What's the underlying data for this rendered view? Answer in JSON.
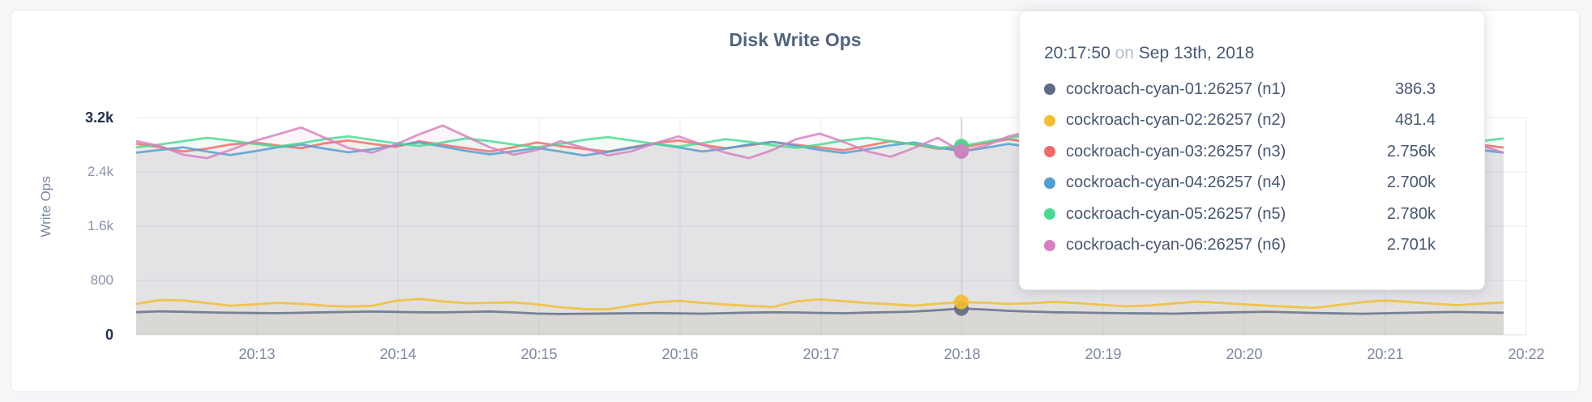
{
  "panel": {
    "title": "Disk Write Ops"
  },
  "colors": {
    "n1": "#5F6C87",
    "n2": "#F2BE2C",
    "n3": "#F16969",
    "n4": "#4E9FD1",
    "n5": "#49D990",
    "n6": "#D77FBF",
    "grid": "#e9eaee",
    "baseline": "#dbdee2",
    "hover_line": "#d2d3d6",
    "title_text": "#51637f",
    "tooltip_text": "#475872"
  },
  "tooltip": {
    "time": "20:17:50",
    "on_word": "on",
    "date": "Sep 13th, 2018",
    "rows": [
      {
        "name": "cockroach-cyan-01:26257 (n1)",
        "value": "386.3",
        "color": "#5F6C87"
      },
      {
        "name": "cockroach-cyan-02:26257 (n2)",
        "value": "481.4",
        "color": "#F2BE2C"
      },
      {
        "name": "cockroach-cyan-03:26257 (n3)",
        "value": "2.756k",
        "color": "#F16969"
      },
      {
        "name": "cockroach-cyan-04:26257 (n4)",
        "value": "2.700k",
        "color": "#4E9FD1"
      },
      {
        "name": "cockroach-cyan-05:26257 (n5)",
        "value": "2.780k",
        "color": "#49D990"
      },
      {
        "name": "cockroach-cyan-06:26257 (n6)",
        "value": "2.701k",
        "color": "#D77FBF"
      }
    ]
  },
  "chart_data": {
    "type": "line",
    "title": "Disk Write Ops",
    "xlabel": "",
    "ylabel": "Write Ops",
    "ylim": [
      0,
      3200
    ],
    "grid": true,
    "legend_position": "tooltip-overlay",
    "y_ticks": [
      {
        "label": "0",
        "value": 0,
        "emph": true
      },
      {
        "label": "800",
        "value": 800,
        "emph": false
      },
      {
        "label": "1.6k",
        "value": 1600,
        "emph": false
      },
      {
        "label": "2.4k",
        "value": 2400,
        "emph": false
      },
      {
        "label": "3.2k",
        "value": 3200,
        "emph": true
      }
    ],
    "x_ticks": [
      "20:13",
      "20:14",
      "20:15",
      "20:16",
      "20:17",
      "20:18",
      "20:19",
      "20:20",
      "20:21",
      "20:22"
    ],
    "x_interval_seconds": 10,
    "hover_index": 35,
    "hover_time": "20:17:50",
    "hover_date": "Sep 13th, 2018",
    "series": [
      {
        "name": "cockroach-cyan-01:26257 (n1)",
        "color": "#5F6C87",
        "hover_value": 386.3,
        "values": [
          332,
          345,
          338,
          330,
          324,
          320,
          318,
          324,
          331,
          336,
          341,
          337,
          331,
          329,
          336,
          343,
          330,
          312,
          306,
          309,
          313,
          316,
          319,
          315,
          311,
          318,
          326,
          331,
          328,
          321,
          317,
          326,
          333,
          342,
          362,
          386.3,
          371,
          352,
          340,
          331,
          327,
          321,
          317,
          314,
          311,
          319,
          326,
          333,
          339,
          329,
          321,
          314,
          309,
          316,
          323,
          331,
          336,
          329,
          324
        ]
      },
      {
        "name": "cockroach-cyan-02:26257 (n2)",
        "color": "#F2BE2C",
        "hover_value": 481.4,
        "values": [
          455,
          512,
          505,
          468,
          428,
          448,
          470,
          455,
          430,
          415,
          425,
          500,
          528,
          492,
          465,
          470,
          478,
          448,
          405,
          378,
          372,
          430,
          478,
          500,
          472,
          445,
          425,
          410,
          492,
          520,
          495,
          468,
          450,
          428,
          458,
          481.4,
          472,
          455,
          466,
          485,
          465,
          440,
          418,
          432,
          462,
          488,
          470,
          448,
          428,
          410,
          398,
          438,
          480,
          505,
          482,
          458,
          436,
          458,
          475
        ]
      },
      {
        "name": "cockroach-cyan-03:26257 (n3)",
        "color": "#F16969",
        "hover_value": 2756,
        "values": [
          2815,
          2762,
          2700,
          2742,
          2802,
          2835,
          2788,
          2748,
          2820,
          2862,
          2812,
          2768,
          2850,
          2798,
          2748,
          2700,
          2762,
          2832,
          2778,
          2738,
          2698,
          2760,
          2822,
          2862,
          2800,
          2748,
          2792,
          2840,
          2798,
          2758,
          2718,
          2782,
          2852,
          2802,
          2740,
          2756,
          2822,
          2880,
          2832,
          2778,
          2738,
          2800,
          2862,
          2812,
          2758,
          2718,
          2772,
          2832,
          2788,
          2748,
          2708,
          2762,
          2822,
          2778,
          2738,
          2792,
          2850,
          2798,
          2758
        ]
      },
      {
        "name": "cockroach-cyan-04:26257 (n4)",
        "color": "#4E9FD1",
        "hover_value": 2700,
        "values": [
          2682,
          2722,
          2762,
          2700,
          2648,
          2702,
          2762,
          2802,
          2742,
          2688,
          2732,
          2792,
          2832,
          2772,
          2708,
          2658,
          2702,
          2752,
          2698,
          2640,
          2692,
          2752,
          2812,
          2762,
          2700,
          2742,
          2802,
          2842,
          2782,
          2722,
          2678,
          2732,
          2792,
          2832,
          2762,
          2700,
          2752,
          2812,
          2762,
          2702,
          2658,
          2712,
          2772,
          2822,
          2762,
          2702,
          2742,
          2802,
          2752,
          2688,
          2648,
          2702,
          2762,
          2812,
          2752,
          2698,
          2658,
          2722,
          2682
        ]
      },
      {
        "name": "cockroach-cyan-05:26257 (n5)",
        "color": "#49D990",
        "hover_value": 2780,
        "values": [
          2762,
          2802,
          2852,
          2902,
          2862,
          2812,
          2772,
          2822,
          2882,
          2922,
          2872,
          2822,
          2782,
          2832,
          2892,
          2852,
          2802,
          2762,
          2812,
          2872,
          2912,
          2862,
          2812,
          2772,
          2822,
          2882,
          2842,
          2792,
          2752,
          2802,
          2862,
          2902,
          2852,
          2802,
          2752,
          2780,
          2842,
          2902,
          2942,
          2882,
          2832,
          2792,
          2842,
          2892,
          2852,
          2802,
          2762,
          2812,
          2872,
          2902,
          2852,
          2802,
          2772,
          2822,
          2882,
          2842,
          2802,
          2852,
          2892
        ]
      },
      {
        "name": "cockroach-cyan-06:26257 (n6)",
        "color": "#D77FBF",
        "hover_value": 2701,
        "values": [
          2852,
          2782,
          2652,
          2602,
          2722,
          2852,
          2952,
          3052,
          2902,
          2752,
          2682,
          2802,
          2952,
          3082,
          2922,
          2762,
          2652,
          2722,
          2852,
          2752,
          2642,
          2702,
          2822,
          2922,
          2802,
          2682,
          2602,
          2722,
          2882,
          2962,
          2842,
          2702,
          2622,
          2752,
          2902,
          2701,
          2782,
          2922,
          3002,
          2852,
          2702,
          2622,
          2742,
          2892,
          2962,
          2822,
          2682,
          2602,
          2732,
          2872,
          2942,
          2802,
          2672,
          2602,
          2722,
          2862,
          2932,
          2792,
          2682
        ]
      }
    ]
  }
}
